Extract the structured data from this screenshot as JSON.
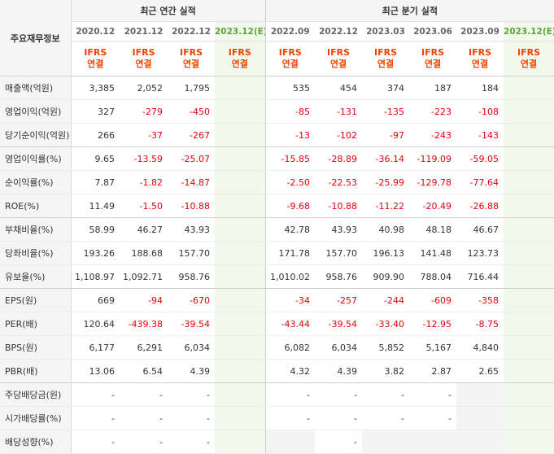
{
  "header": {
    "corner_label": "주요재무정보",
    "annual_title": "최근 연간 실적",
    "quarterly_title": "최근 분기 실적",
    "annual_periods": [
      "2020.12",
      "2021.12",
      "2022.12",
      "2023.12(E)"
    ],
    "quarterly_periods": [
      "2022.09",
      "2022.12",
      "2023.03",
      "2023.06",
      "2023.09",
      "2023.12(E)"
    ],
    "ifrs_label": "IFRS",
    "consolidated_label": "연결"
  },
  "colors": {
    "ifrs_text": "#ee4400",
    "negative_value": "#e8000b",
    "estimate_column": "#f3f8ec",
    "estimate_header_text": "#5aa53a"
  },
  "rows": [
    {
      "label": "매출액(억원)",
      "annual": [
        "3,385",
        "2,052",
        "1,795",
        ""
      ],
      "quarterly": [
        "535",
        "454",
        "374",
        "187",
        "184",
        ""
      ]
    },
    {
      "label": "영업이익(억원)",
      "annual": [
        "327",
        "-279",
        "-450",
        ""
      ],
      "quarterly": [
        "-85",
        "-131",
        "-135",
        "-223",
        "-108",
        ""
      ]
    },
    {
      "label": "당기순이익(억원)",
      "annual": [
        "266",
        "-37",
        "-267",
        ""
      ],
      "quarterly": [
        "-13",
        "-102",
        "-97",
        "-243",
        "-143",
        ""
      ]
    },
    {
      "label": "영업이익률(%)",
      "annual": [
        "9.65",
        "-13.59",
        "-25.07",
        ""
      ],
      "quarterly": [
        "-15.85",
        "-28.89",
        "-36.14",
        "-119.09",
        "-59.05",
        ""
      ]
    },
    {
      "label": "순이익률(%)",
      "annual": [
        "7.87",
        "-1.82",
        "-14.87",
        ""
      ],
      "quarterly": [
        "-2.50",
        "-22.53",
        "-25.99",
        "-129.78",
        "-77.64",
        ""
      ]
    },
    {
      "label": "ROE(%)",
      "annual": [
        "11.49",
        "-1.50",
        "-10.88",
        ""
      ],
      "quarterly": [
        "-9.68",
        "-10.88",
        "-11.22",
        "-20.49",
        "-26.88",
        ""
      ]
    },
    {
      "label": "부채비율(%)",
      "annual": [
        "58.99",
        "46.27",
        "43.93",
        ""
      ],
      "quarterly": [
        "42.78",
        "43.93",
        "40.98",
        "48.18",
        "46.67",
        ""
      ]
    },
    {
      "label": "당좌비율(%)",
      "annual": [
        "193.26",
        "188.68",
        "157.70",
        ""
      ],
      "quarterly": [
        "171.78",
        "157.70",
        "196.13",
        "141.48",
        "123.73",
        ""
      ]
    },
    {
      "label": "유보율(%)",
      "annual": [
        "1,108.97",
        "1,092.71",
        "958.76",
        ""
      ],
      "quarterly": [
        "1,010.02",
        "958.76",
        "909.90",
        "788.04",
        "716.44",
        ""
      ]
    },
    {
      "label": "EPS(원)",
      "annual": [
        "669",
        "-94",
        "-670",
        ""
      ],
      "quarterly": [
        "-34",
        "-257",
        "-244",
        "-609",
        "-358",
        ""
      ]
    },
    {
      "label": "PER(배)",
      "annual": [
        "120.64",
        "-439.38",
        "-39.54",
        ""
      ],
      "quarterly": [
        "-43.44",
        "-39.54",
        "-33.40",
        "-12.95",
        "-8.75",
        ""
      ]
    },
    {
      "label": "BPS(원)",
      "annual": [
        "6,177",
        "6,291",
        "6,034",
        ""
      ],
      "quarterly": [
        "6,082",
        "6,034",
        "5,852",
        "5,167",
        "4,840",
        ""
      ]
    },
    {
      "label": "PBR(배)",
      "annual": [
        "13.06",
        "6.54",
        "4.39",
        ""
      ],
      "quarterly": [
        "4.32",
        "4.39",
        "3.82",
        "2.87",
        "2.65",
        ""
      ]
    },
    {
      "label": "주당배당금(원)",
      "annual": [
        "-",
        "-",
        "-",
        ""
      ],
      "quarterly": [
        "-",
        "-",
        "-",
        "-",
        "",
        ""
      ]
    },
    {
      "label": "시가배당률(%)",
      "annual": [
        "-",
        "-",
        "-",
        ""
      ],
      "quarterly": [
        "-",
        "-",
        "-",
        "-",
        "",
        ""
      ]
    },
    {
      "label": "배당성향(%)",
      "annual": [
        "-",
        "-",
        "-",
        ""
      ],
      "quarterly": [
        "",
        "-",
        "",
        "",
        "",
        ""
      ]
    }
  ]
}
